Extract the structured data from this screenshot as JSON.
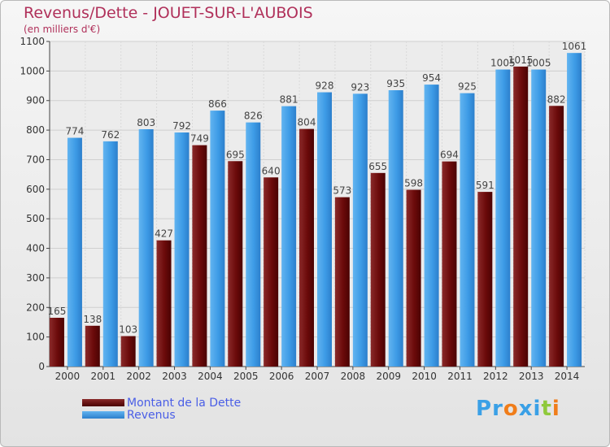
{
  "title": "Revenus/Dette - JOUET-SUR-L'AUBOIS",
  "subtitle": "(en milliers d'€)",
  "legend": [
    {
      "label": "Montant de la Dette",
      "color": "#6b0a0a"
    },
    {
      "label": "Revenus",
      "color": "#3d9be6"
    }
  ],
  "logo": {
    "text": "Proxiti",
    "colors": [
      "#3aa0e6",
      "#3aa0e6",
      "#f07d1a",
      "#3aa0e6",
      "#3aa0e6",
      "#8fc93a",
      "#f07d1a"
    ]
  },
  "colors": {
    "dette": "#6b0a0a",
    "revenus": "#3d9be6",
    "title": "#b0305a"
  },
  "chart_data": {
    "type": "bar",
    "title": "Revenus/Dette - JOUET-SUR-L'AUBOIS",
    "ylabel": "(en milliers d'€)",
    "xlabel": "",
    "categories": [
      "2000",
      "2001",
      "2002",
      "2003",
      "2004",
      "2005",
      "2006",
      "2007",
      "2008",
      "2009",
      "2010",
      "2011",
      "2012",
      "2013",
      "2014"
    ],
    "series": [
      {
        "name": "Montant de la Dette",
        "values": [
          165,
          138,
          103,
          427,
          749,
          695,
          640,
          804,
          573,
          655,
          598,
          694,
          591,
          1015,
          882
        ]
      },
      {
        "name": "Revenus",
        "values": [
          774,
          762,
          803,
          792,
          866,
          826,
          881,
          928,
          923,
          935,
          954,
          925,
          1005,
          1005,
          1061
        ]
      }
    ],
    "ylim": [
      0,
      1100
    ],
    "yticks": [
      0,
      100,
      200,
      300,
      400,
      500,
      600,
      700,
      800,
      900,
      1000,
      1100
    ],
    "grid": true,
    "legend_position": "bottom-left"
  }
}
